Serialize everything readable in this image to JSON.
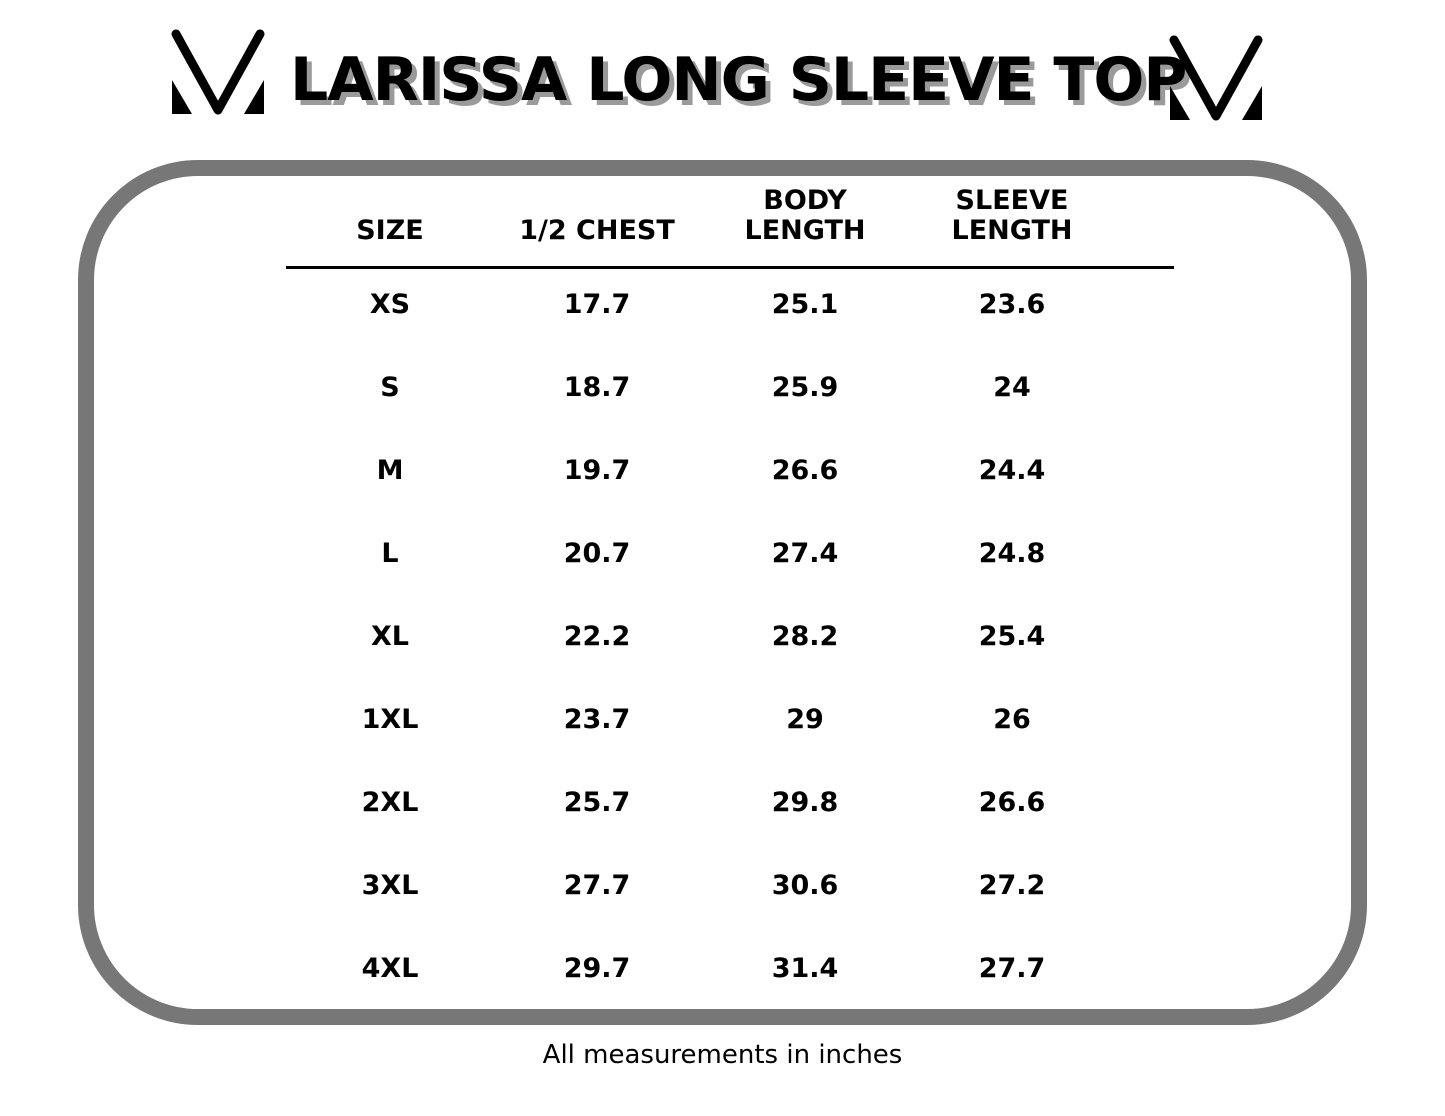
{
  "title": "LARISSA LONG SLEEVE TOP",
  "logo_icon": "v-monogram-logo",
  "table": {
    "headers": [
      {
        "line1": "",
        "line2": "SIZE"
      },
      {
        "line1": "",
        "line2": "1/2 CHEST"
      },
      {
        "line1": "BODY",
        "line2": "LENGTH"
      },
      {
        "line1": "SLEEVE",
        "line2": "LENGTH"
      }
    ],
    "rows": [
      [
        "XS",
        "17.7",
        "25.1",
        "23.6"
      ],
      [
        "S",
        "18.7",
        "25.9",
        "24"
      ],
      [
        "M",
        "19.7",
        "26.6",
        "24.4"
      ],
      [
        "L",
        "20.7",
        "27.4",
        "24.8"
      ],
      [
        "XL",
        "22.2",
        "28.2",
        "25.4"
      ],
      [
        "1XL",
        "23.7",
        "29",
        "26"
      ],
      [
        "2XL",
        "25.7",
        "29.8",
        "26.6"
      ],
      [
        "3XL",
        "27.7",
        "30.6",
        "27.2"
      ],
      [
        "4XL",
        "29.7",
        "31.4",
        "27.7"
      ]
    ]
  },
  "footer": "All measurements in inches",
  "colors": {
    "frame": "#777777",
    "title_shadow": "#9a9a9a"
  }
}
